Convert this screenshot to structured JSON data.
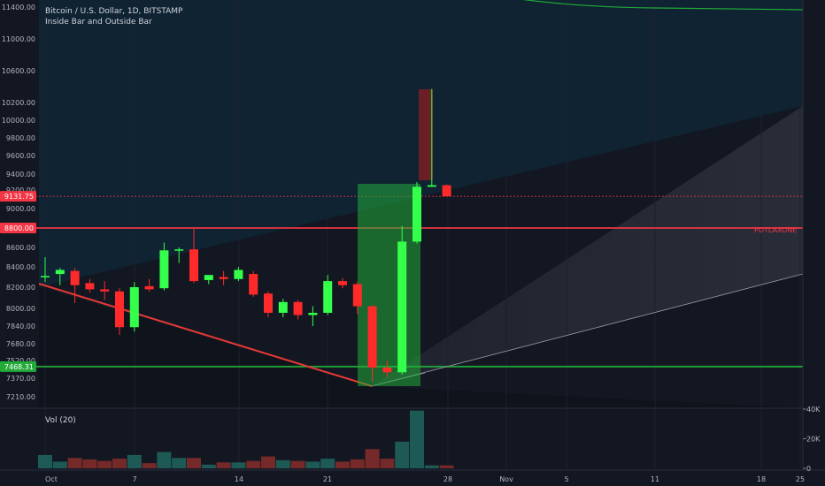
{
  "chart_data": {
    "type": "candlestick",
    "title": "Bitcoin / U.S. Dollar, 1D, BITSTAMP",
    "subtitle": "Inside Bar and Outside Bar",
    "y_ticks": [
      "11400.00",
      "11000.00",
      "10600.00",
      "10200.00",
      "10000.00",
      "9800.00",
      "9600.00",
      "9400.00",
      "9200.00",
      "9000.00",
      "8800.00",
      "8600.00",
      "8400.00",
      "8200.00",
      "8000.00",
      "7840.00",
      "7680.00",
      "7520.00",
      "7370.00",
      "7210.00"
    ],
    "x_ticks": [
      "Oct",
      "7",
      "14",
      "21",
      "28",
      "Nov",
      "5",
      "11",
      "18",
      "25"
    ],
    "price_labels": [
      {
        "text": "9131.75",
        "value": 9131.75,
        "color": "#f23645"
      },
      {
        "text": "8800.00",
        "value": 8800,
        "color": "#f23645"
      },
      {
        "text": "7468.31",
        "value": 7468.31,
        "color": "#22ab39"
      }
    ],
    "annotation": "PDTLAXONE",
    "volume_pane": {
      "label": "Vol (20)",
      "ticks": [
        "40K",
        "20K",
        "0"
      ]
    },
    "colors": {
      "up": "#34ff4a",
      "down": "#ff2a2a",
      "background": "#131722",
      "resistance": "#f23645",
      "support": "#22ab39"
    },
    "candles": [
      {
        "day": 1,
        "o": 8300,
        "h": 8500,
        "l": 8250,
        "c": 8310,
        "v": 9000
      },
      {
        "day": 2,
        "o": 8330,
        "h": 8390,
        "l": 8220,
        "c": 8370,
        "v": 4500
      },
      {
        "day": 3,
        "o": 8360,
        "h": 8390,
        "l": 8050,
        "c": 8220,
        "v": 7000
      },
      {
        "day": 4,
        "o": 8240,
        "h": 8280,
        "l": 8150,
        "c": 8180,
        "v": 6000
      },
      {
        "day": 5,
        "o": 8180,
        "h": 8260,
        "l": 8080,
        "c": 8160,
        "v": 5000
      },
      {
        "day": 6,
        "o": 8160,
        "h": 8190,
        "l": 7760,
        "c": 7830,
        "v": 6500
      },
      {
        "day": 7,
        "o": 7830,
        "h": 8250,
        "l": 7790,
        "c": 8200,
        "v": 9000
      },
      {
        "day": 8,
        "o": 8210,
        "h": 8280,
        "l": 8160,
        "c": 8180,
        "v": 3500
      },
      {
        "day": 9,
        "o": 8190,
        "h": 8650,
        "l": 8170,
        "c": 8570,
        "v": 11000
      },
      {
        "day": 10,
        "o": 8580,
        "h": 8600,
        "l": 8440,
        "c": 8580,
        "v": 7000
      },
      {
        "day": 11,
        "o": 8580,
        "h": 8790,
        "l": 8240,
        "c": 8260,
        "v": 7000
      },
      {
        "day": 12,
        "o": 8270,
        "h": 8320,
        "l": 8230,
        "c": 8320,
        "v": 2500
      },
      {
        "day": 13,
        "o": 8300,
        "h": 8360,
        "l": 8220,
        "c": 8280,
        "v": 4000
      },
      {
        "day": 14,
        "o": 8280,
        "h": 8400,
        "l": 8260,
        "c": 8370,
        "v": 4000
      },
      {
        "day": 15,
        "o": 8330,
        "h": 8360,
        "l": 8110,
        "c": 8130,
        "v": 5000
      },
      {
        "day": 16,
        "o": 8140,
        "h": 8160,
        "l": 7920,
        "c": 7960,
        "v": 8000
      },
      {
        "day": 17,
        "o": 7960,
        "h": 8090,
        "l": 7920,
        "c": 8060,
        "v": 5500
      },
      {
        "day": 18,
        "o": 8060,
        "h": 8080,
        "l": 7900,
        "c": 7940,
        "v": 5000
      },
      {
        "day": 19,
        "o": 7940,
        "h": 8020,
        "l": 7840,
        "c": 7960,
        "v": 4500
      },
      {
        "day": 20,
        "o": 7960,
        "h": 8320,
        "l": 7940,
        "c": 8260,
        "v": 6500
      },
      {
        "day": 21,
        "o": 8260,
        "h": 8290,
        "l": 8190,
        "c": 8220,
        "v": 4500
      },
      {
        "day": 22,
        "o": 8230,
        "h": 8250,
        "l": 7950,
        "c": 8020,
        "v": 6000
      },
      {
        "day": 23,
        "o": 8020,
        "h": 8030,
        "l": 7340,
        "c": 7460,
        "v": 13000
      },
      {
        "day": 24,
        "o": 7460,
        "h": 7520,
        "l": 7380,
        "c": 7420,
        "v": 6500
      },
      {
        "day": 25,
        "o": 7420,
        "h": 8820,
        "l": 7400,
        "c": 8660,
        "v": 18000
      },
      {
        "day": 26,
        "o": 8660,
        "h": 9300,
        "l": 8640,
        "c": 9240,
        "v": 39000
      },
      {
        "day": 27,
        "o": 9240,
        "h": 10370,
        "l": 9240,
        "c": 9260,
        "v": 2000
      },
      {
        "day": 28,
        "o": 9260,
        "h": 9270,
        "l": 9130,
        "c": 9131.75,
        "v": 2000
      }
    ]
  }
}
